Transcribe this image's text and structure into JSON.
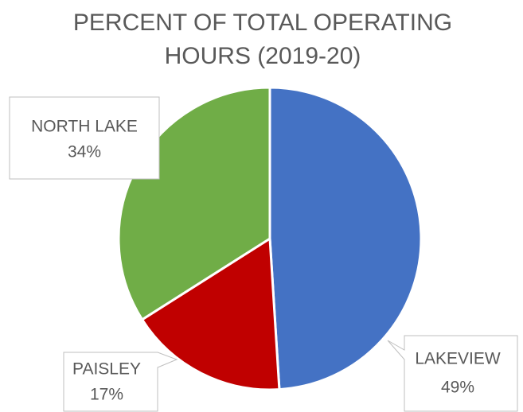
{
  "chart_data": {
    "type": "pie",
    "title": "PERCENT OF TOTAL OPERATING HOURS (2019-20)",
    "categories": [
      "LAKEVIEW",
      "PAISLEY",
      "NORTH LAKE"
    ],
    "values": [
      49,
      17,
      34
    ],
    "value_labels": [
      "49%",
      "17%",
      "34%"
    ],
    "colors": [
      "#4472c4",
      "#c00000",
      "#70ad47"
    ]
  }
}
